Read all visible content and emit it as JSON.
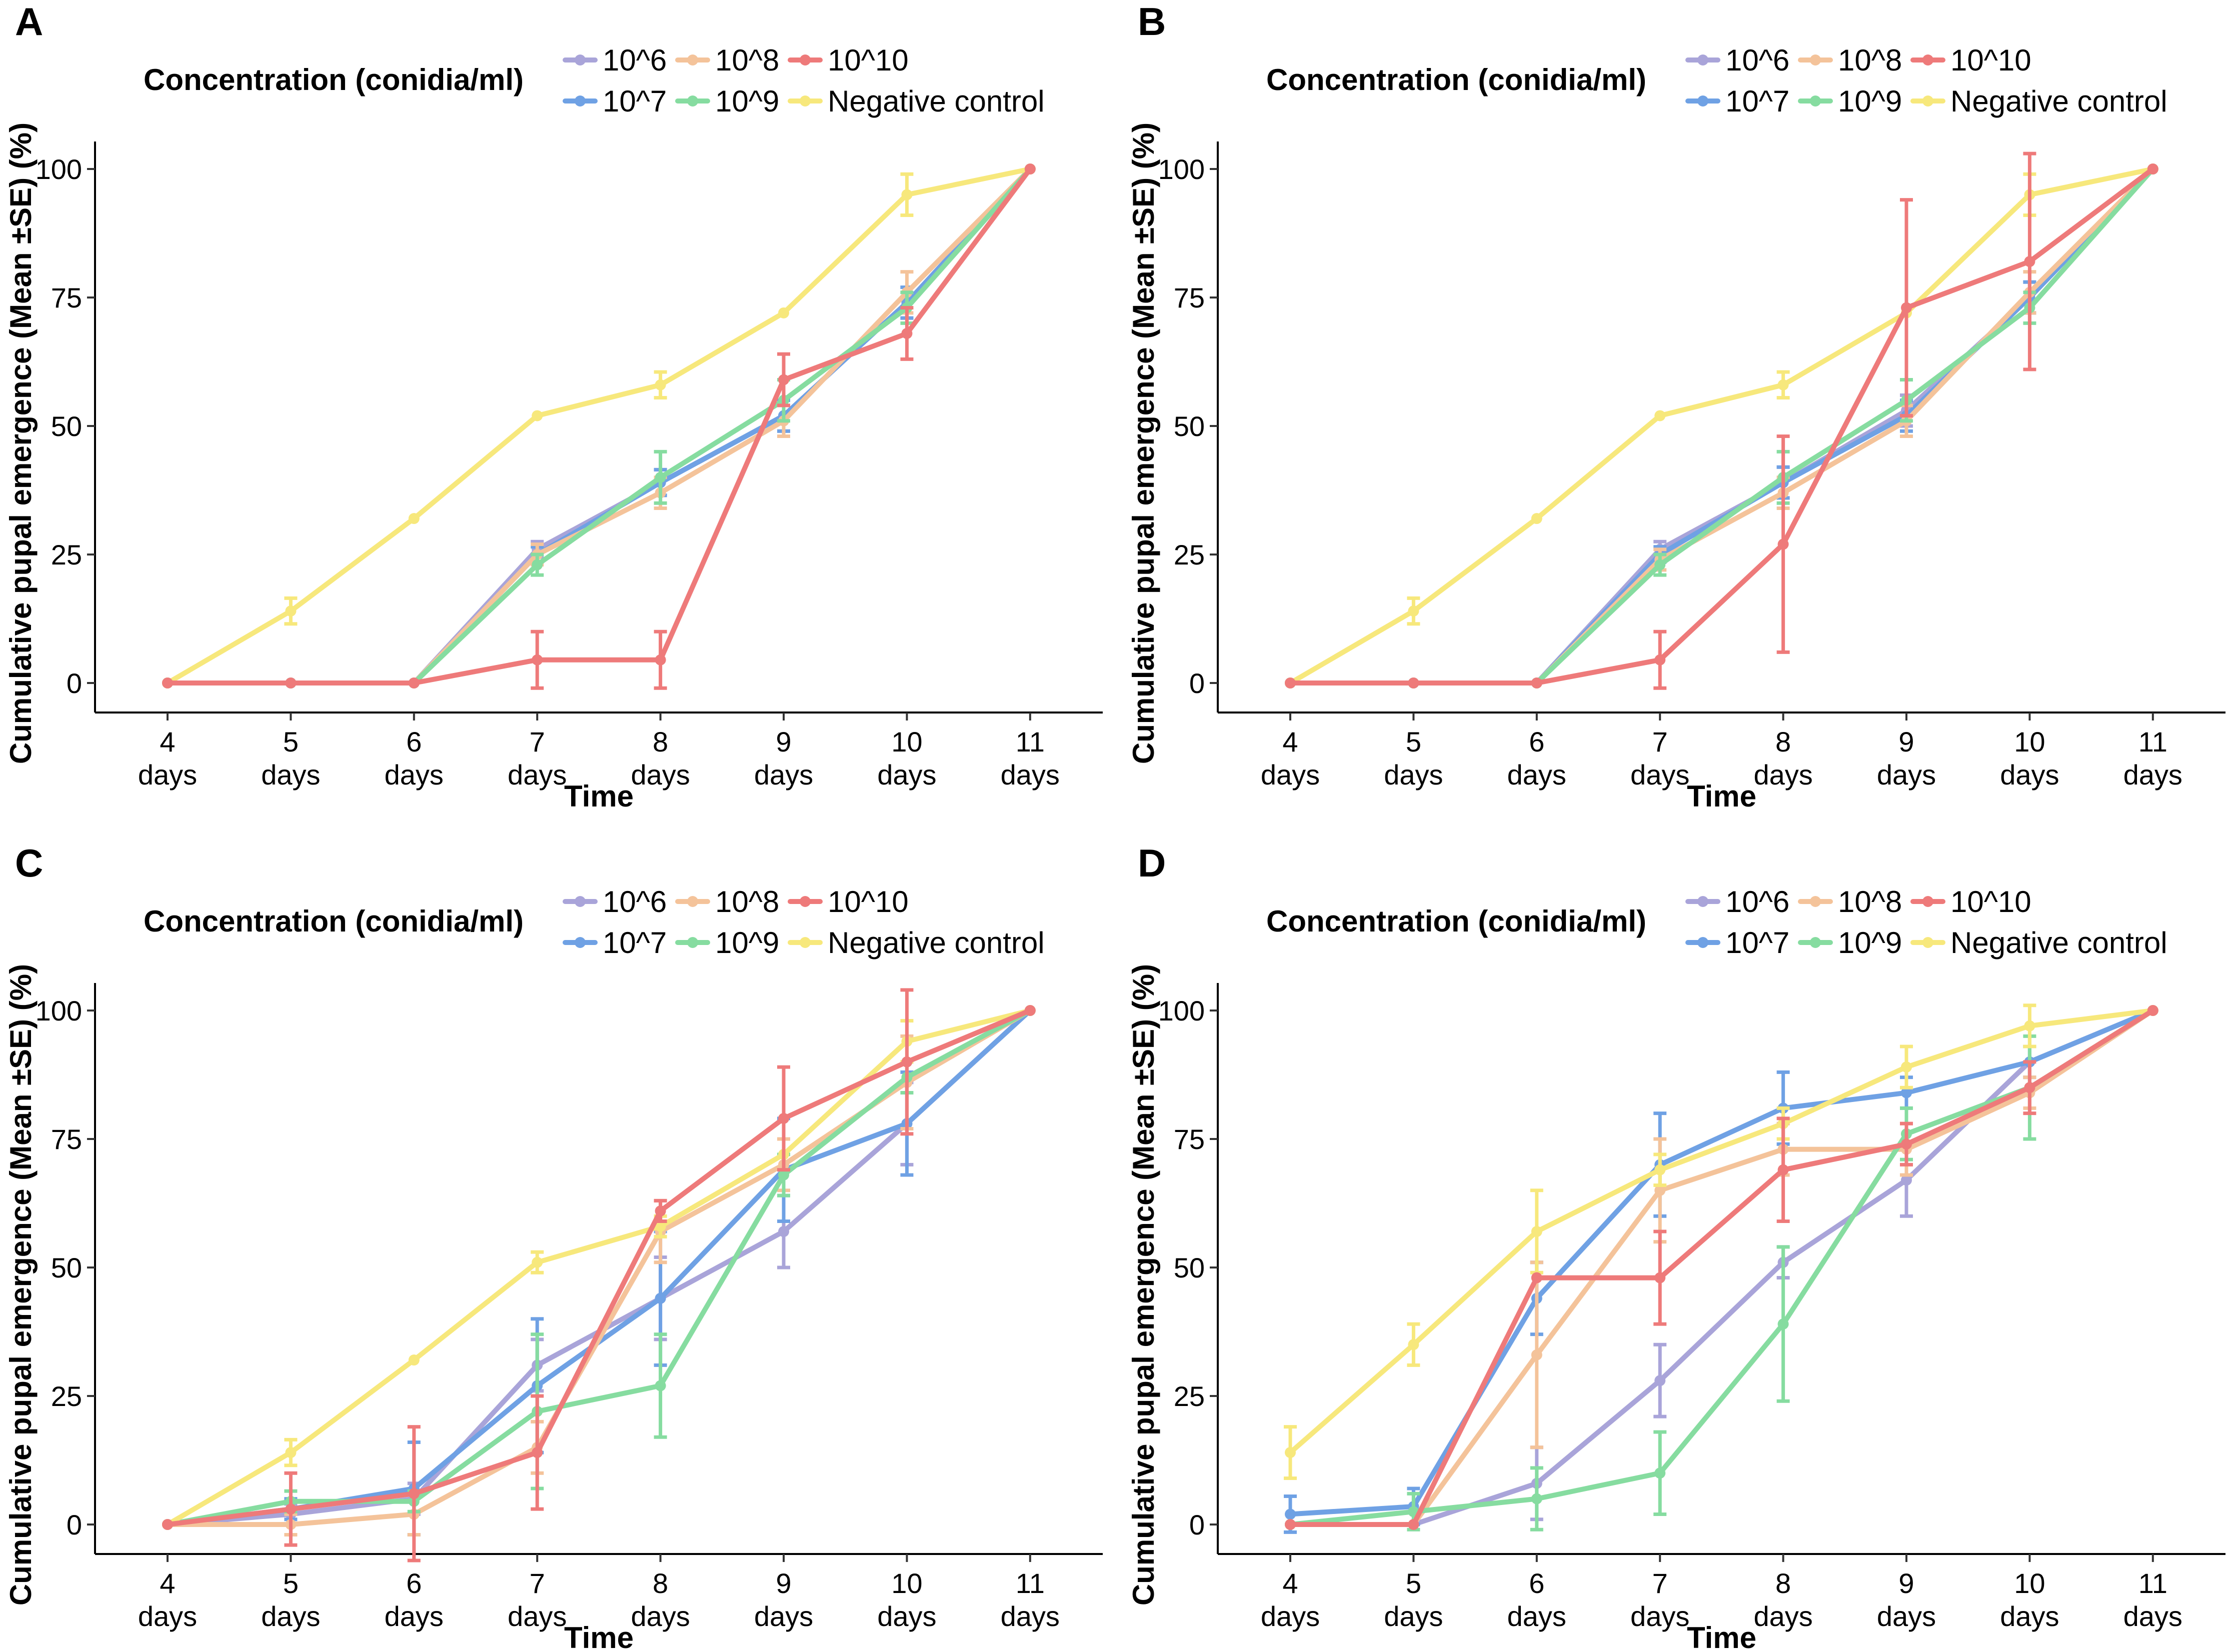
{
  "figure": {
    "legend_title": "Concentration (conidia/ml)",
    "x_axis_title": "Time",
    "y_axis_title": "Cumulative pupal emergence  (Mean ±SE) (%)",
    "x_tick_numbers": [
      "4",
      "5",
      "6",
      "7",
      "8",
      "9",
      "10",
      "11"
    ],
    "x_tick_unit": "days",
    "y_ticks": [
      "0",
      "25",
      "50",
      "75",
      "100"
    ]
  },
  "colors": {
    "10^6": "#a9a4d9",
    "10^7": "#6fa1e4",
    "10^8": "#f4c39a",
    "10^9": "#86dca0",
    "10^10": "#ee7a7a",
    "Negative control": "#f7e87c"
  },
  "legend_layout": [
    [
      "10^6",
      "10^8",
      "10^10"
    ],
    [
      "10^7",
      "10^9",
      "Negative control"
    ]
  ],
  "chart_data": [
    {
      "panel": "A",
      "type": "line",
      "title": "",
      "xlabel": "Time",
      "ylabel": "Cumulative pupal emergence  (Mean ±SE) (%)",
      "categories": [
        "4 days",
        "5 days",
        "6 days",
        "7 days",
        "8 days",
        "9 days",
        "10 days",
        "11 days"
      ],
      "ylim": [
        -5,
        105
      ],
      "series": [
        {
          "name": "10^6",
          "values": [
            0,
            0,
            0,
            26,
            39,
            52,
            74,
            100
          ],
          "errors": [
            0,
            0,
            0,
            1.5,
            2.5,
            3,
            3,
            0
          ]
        },
        {
          "name": "10^7",
          "values": [
            0,
            0,
            0,
            25,
            39,
            52,
            74,
            100
          ],
          "errors": [
            0,
            0,
            0,
            1.5,
            2.5,
            3,
            3,
            0
          ]
        },
        {
          "name": "10^8",
          "values": [
            0,
            0,
            0,
            25,
            37,
            51,
            76,
            100
          ],
          "errors": [
            0,
            0,
            0,
            2,
            3,
            3,
            4,
            0
          ]
        },
        {
          "name": "10^9",
          "values": [
            0,
            0,
            0,
            23,
            40,
            55,
            73,
            100
          ],
          "errors": [
            0,
            0,
            0,
            2,
            5,
            4,
            3,
            0
          ]
        },
        {
          "name": "10^10",
          "values": [
            0,
            0,
            0,
            4.5,
            4.5,
            59,
            68,
            100
          ],
          "errors": [
            0,
            0,
            0,
            5.5,
            5.5,
            5,
            5,
            0
          ]
        },
        {
          "name": "Negative control",
          "values": [
            0,
            14,
            32,
            52,
            58,
            72,
            95,
            100
          ],
          "errors": [
            0,
            2.5,
            0,
            0,
            2.5,
            0,
            4,
            0
          ]
        }
      ]
    },
    {
      "panel": "B",
      "type": "line",
      "title": "",
      "xlabel": "Time",
      "ylabel": "Cumulative pupal emergence  (Mean ±SE) (%)",
      "categories": [
        "4 days",
        "5 days",
        "6 days",
        "7 days",
        "8 days",
        "9 days",
        "10 days",
        "11 days"
      ],
      "ylim": [
        -5,
        105
      ],
      "series": [
        {
          "name": "10^6",
          "values": [
            0,
            0,
            0,
            26,
            39,
            53,
            75,
            100
          ],
          "errors": [
            0,
            0,
            0,
            1.5,
            3,
            3,
            3,
            0
          ]
        },
        {
          "name": "10^7",
          "values": [
            0,
            0,
            0,
            25,
            39,
            52,
            75,
            100
          ],
          "errors": [
            0,
            0,
            0,
            1.5,
            3,
            3,
            3,
            0
          ]
        },
        {
          "name": "10^8",
          "values": [
            0,
            0,
            0,
            24,
            37,
            51,
            76,
            100
          ],
          "errors": [
            0,
            0,
            0,
            2,
            3,
            3,
            4,
            0
          ]
        },
        {
          "name": "10^9",
          "values": [
            0,
            0,
            0,
            23,
            40,
            55,
            73,
            100
          ],
          "errors": [
            0,
            0,
            0,
            2,
            5,
            4,
            3,
            0
          ]
        },
        {
          "name": "10^10",
          "values": [
            0,
            0,
            0,
            4.5,
            27,
            73,
            82,
            100
          ],
          "errors": [
            0,
            0,
            0,
            5.5,
            21,
            21,
            21,
            0
          ]
        },
        {
          "name": "Negative control",
          "values": [
            0,
            14,
            32,
            52,
            58,
            72,
            95,
            100
          ],
          "errors": [
            0,
            2.5,
            0,
            0,
            2.5,
            0,
            4,
            0
          ]
        }
      ]
    },
    {
      "panel": "C",
      "type": "line",
      "title": "",
      "xlabel": "Time",
      "ylabel": "Cumulative pupal emergence  (Mean ±SE) (%)",
      "categories": [
        "4 days",
        "5 days",
        "6 days",
        "7 days",
        "8 days",
        "9 days",
        "10 days",
        "11 days"
      ],
      "ylim": [
        -5,
        105
      ],
      "series": [
        {
          "name": "10^6",
          "values": [
            0,
            2,
            5,
            31,
            44,
            57,
            78,
            100
          ],
          "errors": [
            0,
            2,
            3,
            5,
            8,
            7,
            8,
            0
          ]
        },
        {
          "name": "10^7",
          "values": [
            0,
            3,
            7,
            27,
            44,
            69,
            78,
            100
          ],
          "errors": [
            0,
            2,
            9,
            13,
            13,
            10,
            10,
            0
          ]
        },
        {
          "name": "10^8",
          "values": [
            0,
            0,
            2,
            15,
            57,
            70,
            86,
            100
          ],
          "errors": [
            0,
            2,
            4,
            5,
            6,
            5,
            9,
            0
          ]
        },
        {
          "name": "10^9",
          "values": [
            0,
            4.5,
            4.5,
            22,
            27,
            68,
            87,
            100
          ],
          "errors": [
            0,
            2,
            2,
            15,
            10,
            4,
            3,
            0
          ]
        },
        {
          "name": "10^10",
          "values": [
            0,
            3,
            6,
            14,
            61,
            79,
            90,
            100
          ],
          "errors": [
            0,
            7,
            13,
            11,
            2,
            10,
            14,
            0
          ]
        },
        {
          "name": "Negative control",
          "values": [
            0,
            14,
            32,
            51,
            58,
            72,
            94,
            100
          ],
          "errors": [
            0,
            2.5,
            0,
            2,
            2,
            0,
            4,
            0
          ]
        }
      ]
    },
    {
      "panel": "D",
      "type": "line",
      "title": "",
      "xlabel": "Time",
      "ylabel": "Cumulative pupal emergence  (Mean ±SE) (%)",
      "categories": [
        "4 days",
        "5 days",
        "6 days",
        "7 days",
        "8 days",
        "9 days",
        "10 days",
        "11 days"
      ],
      "ylim": [
        -5,
        105
      ],
      "series": [
        {
          "name": "10^6",
          "values": [
            0,
            0,
            8,
            28,
            51,
            67,
            90,
            100
          ],
          "errors": [
            0,
            0,
            7,
            7,
            3,
            7,
            3,
            0
          ]
        },
        {
          "name": "10^7",
          "values": [
            2,
            3.5,
            44,
            70,
            81,
            84,
            90,
            100
          ],
          "errors": [
            3.5,
            3.5,
            7,
            10,
            7,
            3,
            3,
            0
          ]
        },
        {
          "name": "10^8",
          "values": [
            0,
            0,
            33,
            65,
            73,
            73,
            84,
            100
          ],
          "errors": [
            0,
            0,
            18,
            10,
            5,
            5,
            3,
            0
          ]
        },
        {
          "name": "10^9",
          "values": [
            0,
            2.5,
            5,
            10,
            39,
            76,
            85,
            100
          ],
          "errors": [
            0,
            3.5,
            6,
            8,
            15,
            5,
            10,
            0
          ]
        },
        {
          "name": "10^10",
          "values": [
            0,
            0,
            48,
            48,
            69,
            74,
            85,
            100
          ],
          "errors": [
            0,
            0,
            0,
            9,
            10,
            4,
            5,
            0
          ]
        },
        {
          "name": "Negative control",
          "values": [
            14,
            35,
            57,
            69,
            78,
            89,
            97,
            100
          ],
          "errors": [
            5,
            4,
            8,
            3,
            3,
            4,
            4,
            0
          ]
        }
      ]
    }
  ]
}
